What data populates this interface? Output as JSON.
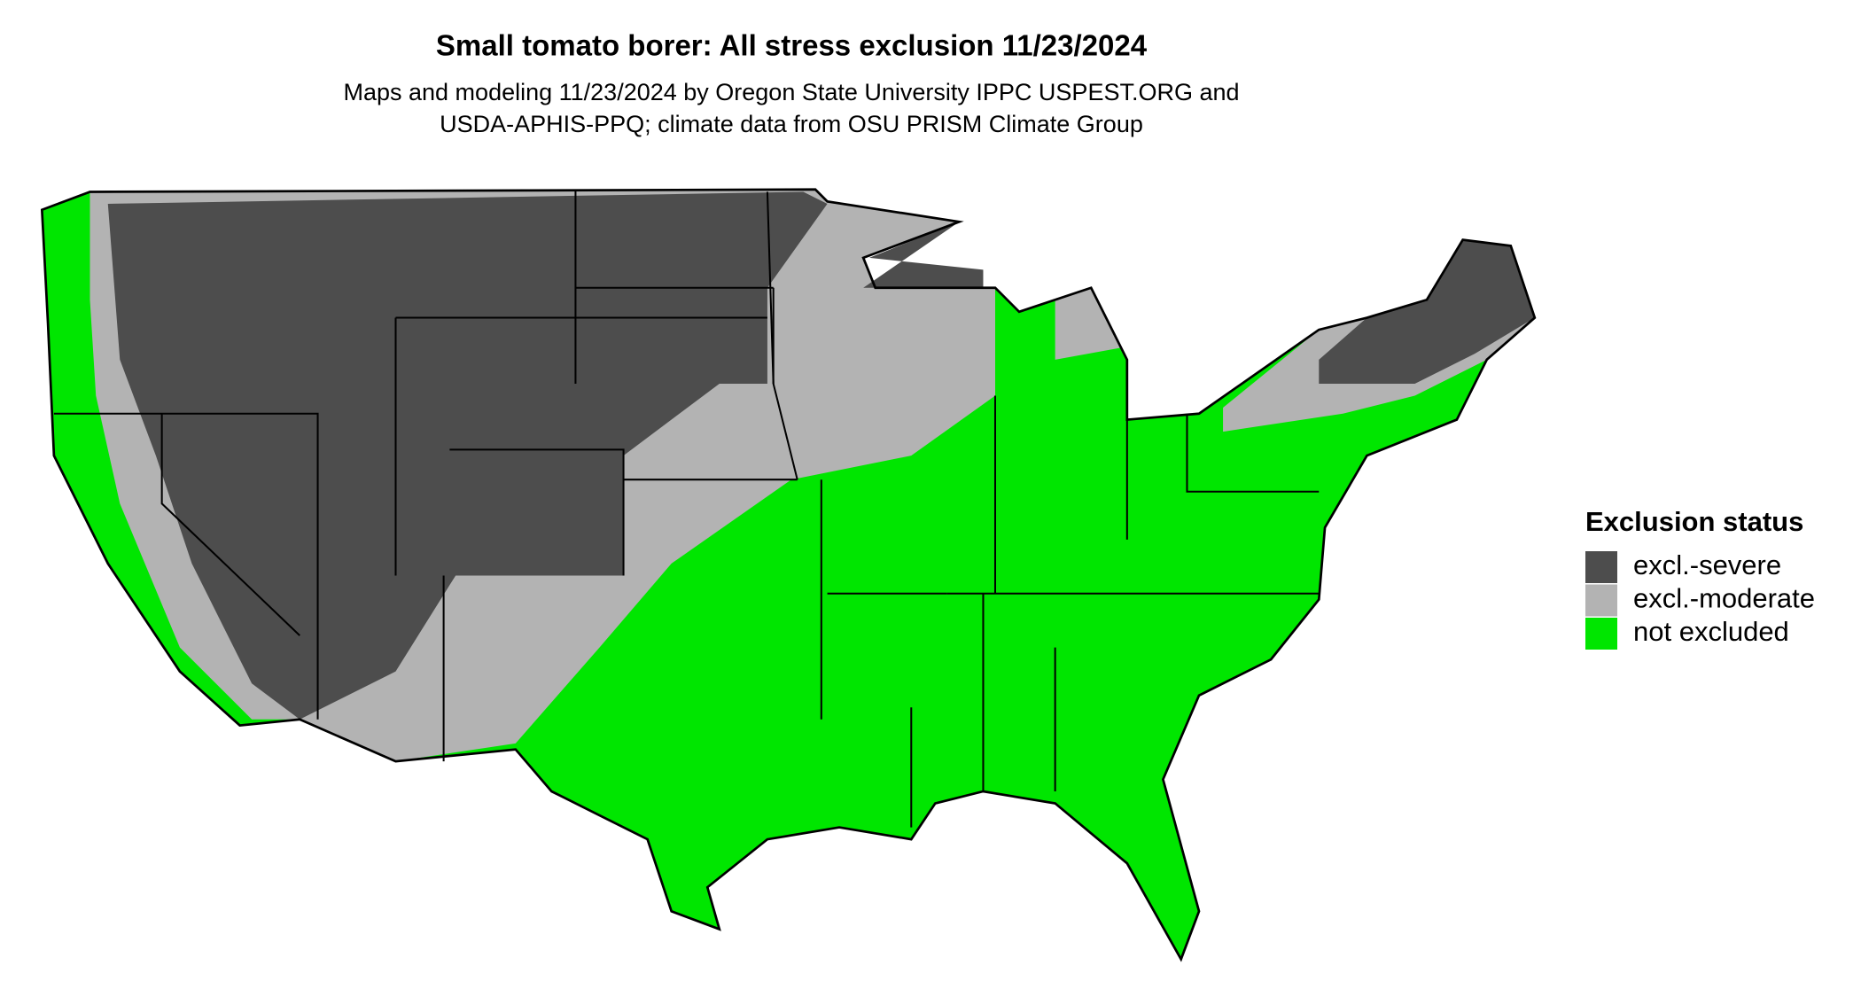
{
  "header": {
    "title": "Small tomato borer: All stress exclusion 11/23/2024",
    "subtitle_lines": [
      "Maps and modeling 11/23/2024 by Oregon State University IPPC USPEST.ORG and",
      "USDA-APHIS-PPQ; climate data from OSU PRISM Climate Group"
    ]
  },
  "legend": {
    "title": "Exclusion status",
    "items": [
      {
        "label": "excl.-severe",
        "color": "#4d4d4d"
      },
      {
        "label": "excl.-moderate",
        "color": "#b3b3b3"
      },
      {
        "label": "not excluded",
        "color": "#00e600"
      }
    ]
  }
}
